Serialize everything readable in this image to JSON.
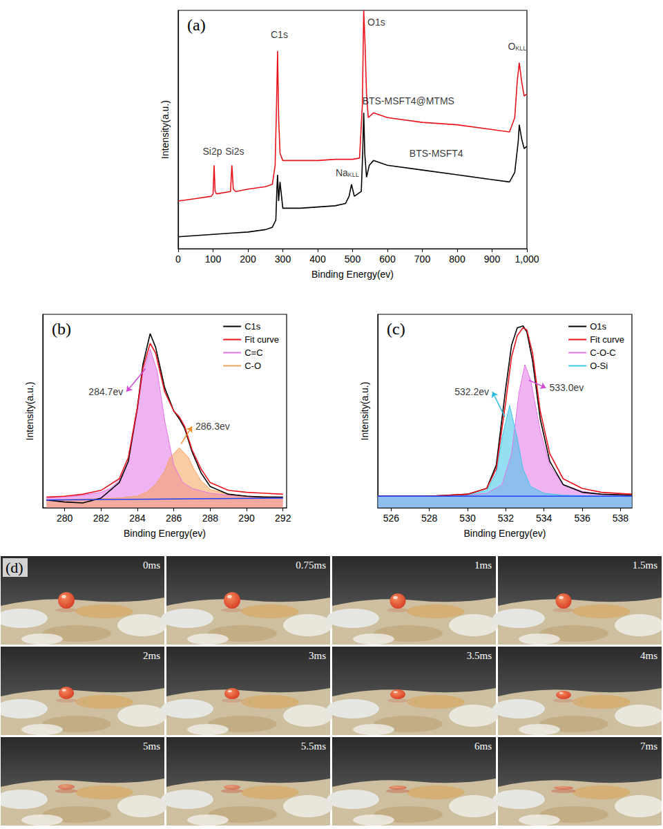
{
  "chart_data": [
    {
      "type": "line",
      "title": "(a)",
      "xlabel": "Binding Energy(ev)",
      "ylabel": "Intensity(a.u.)",
      "xlim": [
        0,
        1000
      ],
      "xticks": [
        0,
        100,
        200,
        300,
        400,
        500,
        600,
        700,
        800,
        900,
        1000
      ],
      "ylim": [
        0,
        100
      ],
      "tick_labels": "x",
      "series": [
        {
          "name": "BTS-MSFT4@MTMS",
          "color": "#e8141d",
          "label_x": 660,
          "label_y": 62,
          "x": [
            0,
            50,
            95,
            100,
            103,
            106,
            110,
            150,
            154,
            158,
            165,
            200,
            250,
            270,
            278,
            282,
            285,
            288,
            292,
            300,
            350,
            400,
            450,
            500,
            520,
            528,
            532,
            536,
            540,
            545,
            560,
            600,
            700,
            800,
            900,
            950,
            965,
            972,
            978,
            985,
            992,
            1000
          ],
          "values": [
            20,
            21,
            22,
            23,
            35,
            24,
            23,
            24,
            35,
            25,
            24,
            25,
            26,
            27,
            35,
            60,
            83,
            55,
            40,
            37,
            37,
            37,
            37.5,
            37.5,
            38,
            60,
            100,
            85,
            65,
            55,
            57,
            55,
            53,
            52,
            50,
            49,
            55,
            70,
            78,
            70,
            64,
            65
          ]
        },
        {
          "name": "BTS-MSFT4",
          "color": "#000000",
          "label_x": 740,
          "label_y": 40,
          "x": [
            0,
            50,
            100,
            150,
            200,
            250,
            270,
            280,
            283,
            285,
            288,
            292,
            300,
            350,
            400,
            450,
            480,
            490,
            497,
            505,
            515,
            525,
            529,
            532,
            535,
            540,
            548,
            560,
            600,
            700,
            800,
            900,
            950,
            965,
            975,
            978,
            985,
            992,
            1000
          ],
          "values": [
            5,
            5.5,
            6,
            6.5,
            7,
            8,
            9,
            12,
            25,
            31,
            20,
            28,
            17,
            17,
            17.5,
            18,
            19,
            22,
            27,
            22,
            23,
            24,
            40,
            57,
            40,
            30,
            35,
            37,
            35,
            33,
            31,
            29,
            28,
            32,
            45,
            52,
            46,
            42,
            43
          ]
        }
      ],
      "annotations": [
        {
          "text": "C1s",
          "x": 290,
          "y": 90
        },
        {
          "text": "O1s",
          "x": 568,
          "y": 95
        },
        {
          "text": "O",
          "subscript": "KLL",
          "x": 972,
          "y": 85
        },
        {
          "text": "Si2p",
          "x": 98,
          "y": 41
        },
        {
          "text": "Si2s",
          "x": 162,
          "y": 41
        },
        {
          "text": "Na",
          "subscript": "KLL",
          "x": 485,
          "y": 32
        }
      ]
    },
    {
      "type": "line",
      "title": "(b)",
      "xlabel": "Binding Energy(ev)",
      "ylabel": "Intensity(a.u.)",
      "xlim": [
        278.8,
        292.2
      ],
      "xticks": [
        280,
        282,
        284,
        286,
        288,
        290,
        292
      ],
      "ylim": [
        0,
        100
      ],
      "tick_labels": "x",
      "legend": "upper right",
      "series": [
        {
          "name": "C1s",
          "color": "#000000",
          "x": [
            279,
            280,
            281,
            282,
            283,
            283.5,
            284,
            284.3,
            284.7,
            285,
            285.5,
            286,
            286.3,
            286.6,
            287,
            287.5,
            288,
            289,
            290,
            291,
            292
          ],
          "values": [
            4,
            3,
            2.5,
            5,
            13,
            24,
            52,
            74,
            90,
            83,
            62,
            50,
            46,
            41,
            29,
            18,
            11,
            7,
            6,
            5.5,
            5.5
          ]
        },
        {
          "name": "Fit curve",
          "color": "#e8141d",
          "x": [
            279,
            280,
            281,
            282,
            283,
            283.5,
            284,
            284.3,
            284.7,
            285,
            285.5,
            286,
            286.3,
            286.6,
            287,
            287.5,
            288,
            289,
            290,
            291,
            292
          ],
          "values": [
            5.5,
            6,
            7,
            9,
            15,
            26,
            52,
            72,
            85,
            80,
            60,
            50,
            47,
            42,
            30,
            20,
            13,
            9,
            8,
            7.5,
            7
          ]
        },
        {
          "name": "C=C",
          "color": "#e274e6",
          "type": "area",
          "x": [
            279,
            280,
            281,
            282,
            282.5,
            283,
            283.5,
            284,
            284.3,
            284.7,
            285.1,
            285.5,
            286,
            286.5,
            287,
            288,
            289,
            290,
            291,
            292
          ],
          "values": [
            5,
            5.5,
            6.5,
            8,
            10,
            14,
            24,
            50,
            70,
            82,
            70,
            45,
            22,
            13,
            10,
            7.5,
            6.5,
            6,
            5.5,
            5.5
          ]
        },
        {
          "name": "C-O",
          "color": "#f5a25a",
          "type": "area",
          "x": [
            279,
            281,
            283,
            284,
            284.5,
            285,
            285.5,
            285.8,
            286.3,
            286.8,
            287.1,
            287.5,
            288,
            289,
            290,
            292
          ],
          "values": [
            4,
            4.5,
            5,
            6,
            8,
            12,
            19,
            26,
            31,
            26,
            20,
            14,
            9.5,
            7,
            6,
            5.5
          ]
        },
        {
          "color": "#2040ff",
          "x": [
            279,
            292
          ],
          "values": [
            4,
            5
          ]
        }
      ],
      "annotations": [
        {
          "text": "284.7ev",
          "x": 283.4,
          "y": 60,
          "arrow_x": 284.45,
          "arrow_y": 72,
          "color": "#d04ad4"
        },
        {
          "text": "286.3ev",
          "x": 287.0,
          "y": 42,
          "arrow_x": 286.4,
          "arrow_y": 33,
          "color": "#f08a2a"
        }
      ]
    },
    {
      "type": "line",
      "title": "(c)",
      "xlabel": "Binding Energy(ev)",
      "ylabel": "Intensity(a.u.)",
      "xlim": [
        525.3,
        538.6
      ],
      "xticks": [
        526,
        528,
        530,
        532,
        534,
        536,
        538
      ],
      "ylim": [
        0,
        100
      ],
      "tick_labels": "x",
      "legend": "upper right",
      "series": [
        {
          "name": "O1s",
          "color": "#000000",
          "x": [
            525.3,
            528,
            530,
            531,
            531.5,
            532,
            532.3,
            532.6,
            532.9,
            533.1,
            533.4,
            533.8,
            534.3,
            535,
            536,
            537,
            538.6
          ],
          "values": [
            6,
            6,
            7,
            10,
            22,
            62,
            84,
            93,
            94,
            91,
            76,
            46,
            24,
            12,
            8,
            7,
            6.5
          ]
        },
        {
          "name": "Fit curve",
          "color": "#e8141d",
          "x": [
            525.3,
            528,
            530,
            531,
            531.5,
            532,
            532.3,
            532.6,
            532.9,
            533.1,
            533.4,
            533.8,
            534.3,
            535,
            536,
            537,
            538.6
          ],
          "values": [
            6,
            6,
            7,
            10,
            20,
            55,
            78,
            89,
            93,
            92,
            80,
            50,
            28,
            15,
            10,
            8,
            7
          ]
        },
        {
          "name": "C-O-C",
          "color": "#e274e6",
          "type": "area",
          "x": [
            525.3,
            528,
            530,
            531,
            531.8,
            532.3,
            532.7,
            533,
            533.3,
            533.8,
            534.3,
            535,
            536,
            537,
            538.6
          ],
          "values": [
            6,
            6,
            6.5,
            7.5,
            12,
            28,
            60,
            74,
            66,
            40,
            22,
            12,
            8.5,
            7,
            6.5
          ]
        },
        {
          "name": "O-Si",
          "color": "#3cc6e8",
          "type": "area",
          "x": [
            525.3,
            528,
            530,
            531,
            531.5,
            531.8,
            532.2,
            532.6,
            532.9,
            533.3,
            534,
            535,
            537,
            538.6
          ],
          "values": [
            6,
            6,
            6.5,
            9,
            18,
            36,
            53,
            36,
            20,
            11,
            7.5,
            6.5,
            6,
            6
          ]
        },
        {
          "color": "#2040ff",
          "x": [
            525.3,
            538.6
          ],
          "values": [
            6,
            6
          ]
        }
      ],
      "annotations": [
        {
          "text": "532.2ev",
          "x": 531.3,
          "y": 60,
          "arrow_x": 531.95,
          "arrow_y": 47,
          "color": "#2cb8dc"
        },
        {
          "text": "533.0ev",
          "x": 534.1,
          "y": 62,
          "arrow_x": 533.2,
          "arrow_y": 66,
          "color": "#d04ad4"
        }
      ]
    }
  ],
  "photo_panel": {
    "title": "(d)",
    "frames": [
      "0ms",
      "0.75ms",
      "1ms",
      "1.5ms",
      "2ms",
      "3ms",
      "3.5ms",
      "4ms",
      "5ms",
      "5.5ms",
      "6ms",
      "7ms"
    ]
  }
}
